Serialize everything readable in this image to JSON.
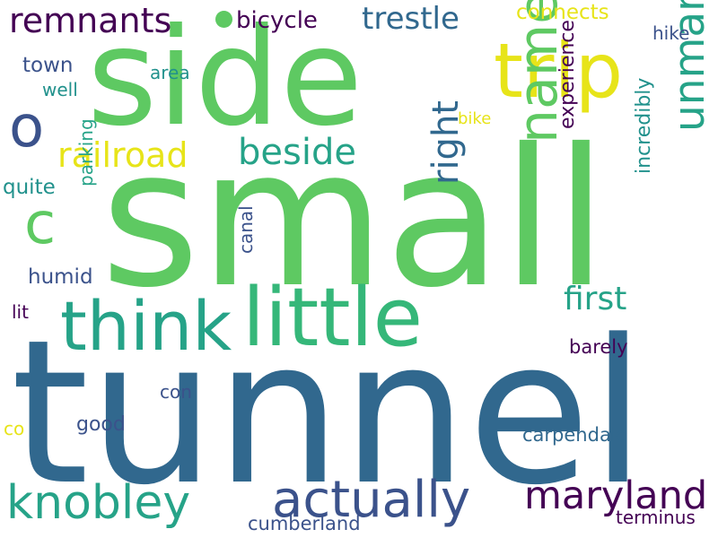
{
  "palette": {
    "dark_purple": "#440154",
    "indigo": "#3b528b",
    "steel_blue": "#31688e",
    "teal": "#21918c",
    "sea_green": "#26a388",
    "green": "#35b779",
    "light_green": "#5ec962",
    "yellow": "#e7e419",
    "background": "#ffffff"
  },
  "words": [
    {
      "text": "tunnel",
      "color": "steel_blue"
    },
    {
      "text": "small",
      "color": "light_green"
    },
    {
      "text": "side",
      "color": "light_green"
    },
    {
      "text": "little",
      "color": "green"
    },
    {
      "text": "think",
      "color": "sea_green"
    },
    {
      "text": "trip",
      "color": "yellow"
    },
    {
      "text": "name",
      "color": "light_green"
    },
    {
      "text": "actually",
      "color": "indigo"
    },
    {
      "text": "knobley",
      "color": "sea_green"
    },
    {
      "text": "maryland",
      "color": "dark_purple"
    },
    {
      "text": "unmarked",
      "color": "sea_green"
    },
    {
      "text": "remnants",
      "color": "dark_purple"
    },
    {
      "text": "o",
      "color": "indigo"
    },
    {
      "text": "c",
      "color": "light_green"
    },
    {
      "text": "railroad",
      "color": "yellow"
    },
    {
      "text": "beside",
      "color": "sea_green"
    },
    {
      "text": "trestle",
      "color": "steel_blue"
    },
    {
      "text": "right",
      "color": "steel_blue"
    },
    {
      "text": "first",
      "color": "sea_green"
    },
    {
      "text": "bicycle",
      "color": "dark_purple"
    },
    {
      "text": "connects",
      "color": "yellow"
    },
    {
      "text": "hike",
      "color": "indigo"
    },
    {
      "text": "town",
      "color": "indigo"
    },
    {
      "text": "area",
      "color": "teal"
    },
    {
      "text": "well",
      "color": "teal"
    },
    {
      "text": "bike",
      "color": "yellow"
    },
    {
      "text": "quite",
      "color": "teal"
    },
    {
      "text": "parking",
      "color": "sea_green"
    },
    {
      "text": "experience",
      "color": "dark_purple"
    },
    {
      "text": "incredibly",
      "color": "teal"
    },
    {
      "text": "humid",
      "color": "indigo"
    },
    {
      "text": "canal",
      "color": "indigo"
    },
    {
      "text": "lit",
      "color": "dark_purple"
    },
    {
      "text": "barely",
      "color": "dark_purple"
    },
    {
      "text": "con",
      "color": "indigo"
    },
    {
      "text": "co",
      "color": "yellow"
    },
    {
      "text": "good",
      "color": "indigo"
    },
    {
      "text": "carpendale",
      "color": "steel_blue"
    },
    {
      "text": "cumberland",
      "color": "indigo"
    },
    {
      "text": "terminus",
      "color": "dark_purple"
    }
  ],
  "dot_color": "light_green"
}
